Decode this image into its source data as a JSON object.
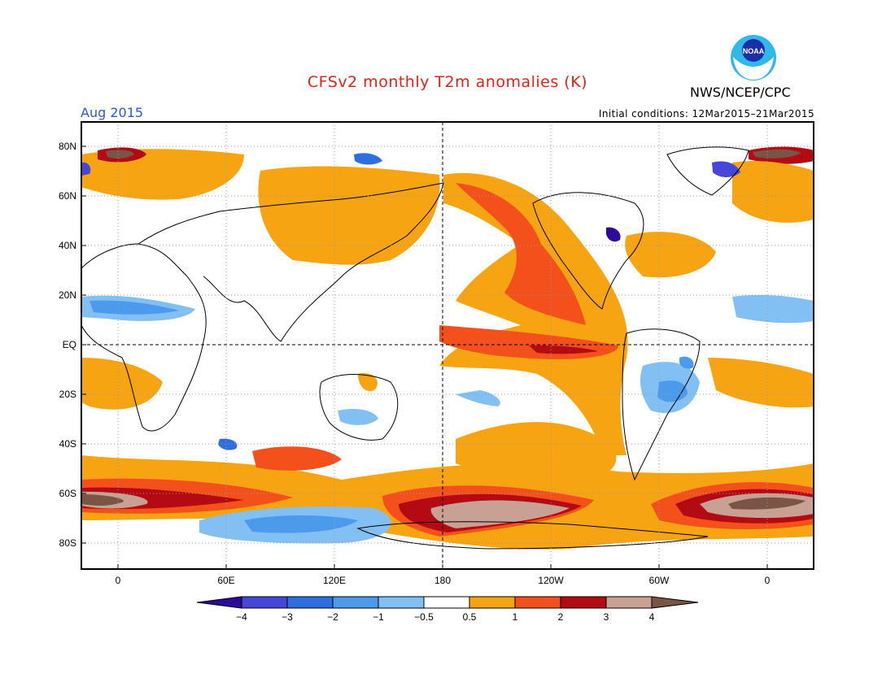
{
  "title": "CFSv2 monthly T2m anomalies (K)",
  "valid_period": "Aug 2015",
  "initial_conditions": "Initial conditions: 12Mar2015–21Mar2015",
  "agency": "NWS/NCEP/CPC",
  "logo": {
    "text": "NOAA"
  },
  "lat_labels": [
    "80N",
    "60N",
    "40N",
    "20N",
    "EQ",
    "20S",
    "40S",
    "60S",
    "80S"
  ],
  "lon_labels": [
    "0",
    "60E",
    "120E",
    "180",
    "120W",
    "60W",
    "0"
  ],
  "colorbar": {
    "labels": [
      "−4",
      "−3",
      "−2",
      "−1",
      "−0.5",
      "0.5",
      "1",
      "2",
      "3",
      "4"
    ],
    "colors": [
      "#2c0b9c",
      "#4646d8",
      "#2e6ee0",
      "#4c9aec",
      "#82bff2",
      "#ffffff",
      "#f7a413",
      "#f4501c",
      "#b40a14",
      "#c8a094",
      "#7a5444"
    ]
  }
}
